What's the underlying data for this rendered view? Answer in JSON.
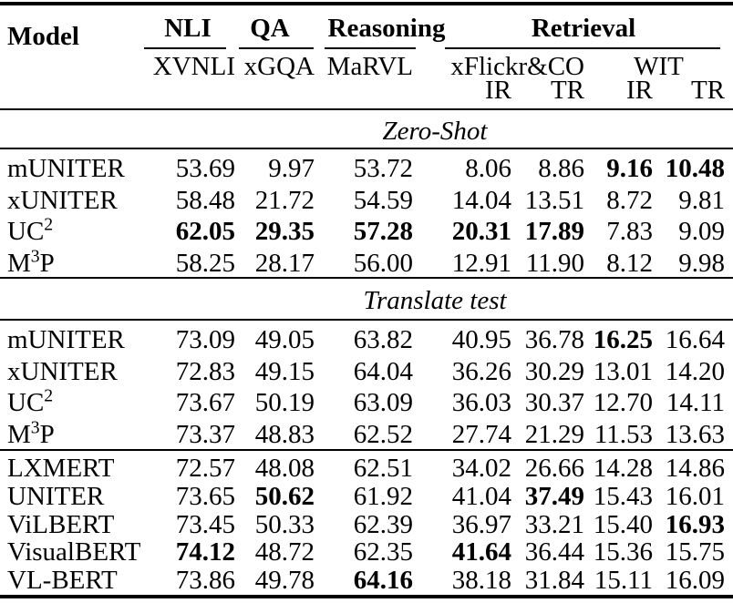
{
  "table": {
    "header": {
      "model": "Model",
      "groups": [
        {
          "label": "NLI"
        },
        {
          "label": "QA"
        },
        {
          "label": "Reasoning"
        },
        {
          "label": "Retrieval"
        }
      ],
      "subheaders": {
        "nli": "XVNLI",
        "qa": "xGQA",
        "reasoning": "MaRVL",
        "retrieval_a": "xFlickr&CO",
        "retrieval_b": "WIT"
      },
      "measures": [
        "IR",
        "TR",
        "IR",
        "TR"
      ]
    },
    "sections": [
      {
        "label": "Zero-Shot",
        "blocks": [
          {
            "rows": [
              {
                "model": {
                  "base": "mUNITER",
                  "sup": "",
                  "rest": ""
                },
                "values": [
                  "53.69",
                  "9.97",
                  "53.72",
                  "8.06",
                  "8.86",
                  "9.16",
                  "10.48"
                ],
                "bold": [
                  0,
                  0,
                  0,
                  0,
                  0,
                  1,
                  1
                ]
              },
              {
                "model": {
                  "base": "xUNITER",
                  "sup": "",
                  "rest": ""
                },
                "values": [
                  "58.48",
                  "21.72",
                  "54.59",
                  "14.04",
                  "13.51",
                  "8.72",
                  "9.81"
                ],
                "bold": [
                  0,
                  0,
                  0,
                  0,
                  0,
                  0,
                  0
                ]
              },
              {
                "model": {
                  "base": "UC",
                  "sup": "2",
                  "rest": ""
                },
                "values": [
                  "62.05",
                  "29.35",
                  "57.28",
                  "20.31",
                  "17.89",
                  "7.83",
                  "9.09"
                ],
                "bold": [
                  1,
                  1,
                  1,
                  1,
                  1,
                  0,
                  0
                ]
              },
              {
                "model": {
                  "base": "M",
                  "sup": "3",
                  "rest": "P"
                },
                "values": [
                  "58.25",
                  "28.17",
                  "56.00",
                  "12.91",
                  "11.90",
                  "8.12",
                  "9.98"
                ],
                "bold": [
                  0,
                  0,
                  0,
                  0,
                  0,
                  0,
                  0
                ]
              }
            ]
          }
        ]
      },
      {
        "label": "Translate test",
        "blocks": [
          {
            "rows": [
              {
                "model": {
                  "base": "mUNITER",
                  "sup": "",
                  "rest": ""
                },
                "values": [
                  "73.09",
                  "49.05",
                  "63.82",
                  "40.95",
                  "36.78",
                  "16.25",
                  "16.64"
                ],
                "bold": [
                  0,
                  0,
                  0,
                  0,
                  0,
                  1,
                  0
                ]
              },
              {
                "model": {
                  "base": "xUNITER",
                  "sup": "",
                  "rest": ""
                },
                "values": [
                  "72.83",
                  "49.15",
                  "64.04",
                  "36.26",
                  "30.29",
                  "13.01",
                  "14.20"
                ],
                "bold": [
                  0,
                  0,
                  0,
                  0,
                  0,
                  0,
                  0
                ]
              },
              {
                "model": {
                  "base": "UC",
                  "sup": "2",
                  "rest": ""
                },
                "values": [
                  "73.67",
                  "50.19",
                  "63.09",
                  "36.03",
                  "30.37",
                  "12.70",
                  "14.11"
                ],
                "bold": [
                  0,
                  0,
                  0,
                  0,
                  0,
                  0,
                  0
                ]
              },
              {
                "model": {
                  "base": "M",
                  "sup": "3",
                  "rest": "P"
                },
                "values": [
                  "73.37",
                  "48.83",
                  "62.52",
                  "27.74",
                  "21.29",
                  "11.53",
                  "13.63"
                ],
                "bold": [
                  0,
                  0,
                  0,
                  0,
                  0,
                  0,
                  0
                ]
              }
            ]
          },
          {
            "rows": [
              {
                "model": {
                  "base": "LXMERT",
                  "sup": "",
                  "rest": ""
                },
                "values": [
                  "72.57",
                  "48.08",
                  "62.51",
                  "34.02",
                  "26.66",
                  "14.28",
                  "14.86"
                ],
                "bold": [
                  0,
                  0,
                  0,
                  0,
                  0,
                  0,
                  0
                ]
              },
              {
                "model": {
                  "base": "UNITER",
                  "sup": "",
                  "rest": ""
                },
                "values": [
                  "73.65",
                  "50.62",
                  "61.92",
                  "41.04",
                  "37.49",
                  "15.43",
                  "16.01"
                ],
                "bold": [
                  0,
                  1,
                  0,
                  0,
                  1,
                  0,
                  0
                ]
              },
              {
                "model": {
                  "base": "ViLBERT",
                  "sup": "",
                  "rest": ""
                },
                "values": [
                  "73.45",
                  "50.33",
                  "62.39",
                  "36.97",
                  "33.21",
                  "15.40",
                  "16.93"
                ],
                "bold": [
                  0,
                  0,
                  0,
                  0,
                  0,
                  0,
                  1
                ]
              },
              {
                "model": {
                  "base": "VisualBERT",
                  "sup": "",
                  "rest": ""
                },
                "values": [
                  "74.12",
                  "48.72",
                  "62.35",
                  "41.64",
                  "36.44",
                  "15.36",
                  "15.75"
                ],
                "bold": [
                  1,
                  0,
                  0,
                  1,
                  0,
                  0,
                  0
                ]
              },
              {
                "model": {
                  "base": "VL-BERT",
                  "sup": "",
                  "rest": ""
                },
                "values": [
                  "73.86",
                  "49.78",
                  "64.16",
                  "38.18",
                  "31.84",
                  "15.11",
                  "16.09"
                ],
                "bold": [
                  0,
                  0,
                  1,
                  0,
                  0,
                  0,
                  0
                ]
              }
            ]
          }
        ]
      }
    ],
    "colors": {
      "text": "#000000",
      "background": "#ffffff",
      "rule": "#000000"
    }
  }
}
